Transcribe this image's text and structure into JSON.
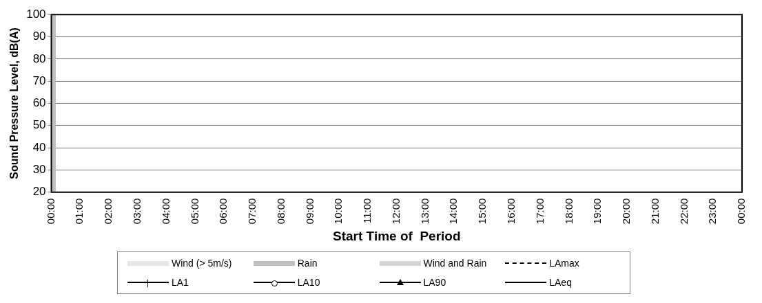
{
  "chart_data": {
    "type": "line",
    "xlabel": "Start Time of  Period",
    "ylabel": "Sound Pressure Level, dB(A)",
    "xlim": [
      0,
      24
    ],
    "xticks": [
      {
        "value": 0,
        "label": "00:00"
      },
      {
        "value": 1,
        "label": "01:00"
      },
      {
        "value": 2,
        "label": "02:00"
      },
      {
        "value": 3,
        "label": "03:00"
      },
      {
        "value": 4,
        "label": "04:00"
      },
      {
        "value": 5,
        "label": "05:00"
      },
      {
        "value": 6,
        "label": "06:00"
      },
      {
        "value": 7,
        "label": "07:00"
      },
      {
        "value": 8,
        "label": "08:00"
      },
      {
        "value": 9,
        "label": "09:00"
      },
      {
        "value": 10,
        "label": "10:00"
      },
      {
        "value": 11,
        "label": "11:00"
      },
      {
        "value": 12,
        "label": "12:00"
      },
      {
        "value": 13,
        "label": "13:00"
      },
      {
        "value": 14,
        "label": "14:00"
      },
      {
        "value": 15,
        "label": "15:00"
      },
      {
        "value": 16,
        "label": "16:00"
      },
      {
        "value": 17,
        "label": "17:00"
      },
      {
        "value": 18,
        "label": "18:00"
      },
      {
        "value": 19,
        "label": "19:00"
      },
      {
        "value": 20,
        "label": "20:00"
      },
      {
        "value": 21,
        "label": "21:00"
      },
      {
        "value": 22,
        "label": "22:00"
      },
      {
        "value": 23,
        "label": "23:00"
      },
      {
        "value": 24,
        "label": "00:00"
      }
    ],
    "ylim": [
      20,
      100
    ],
    "yticks": [
      20,
      30,
      40,
      50,
      60,
      70,
      80,
      90,
      100
    ],
    "grid": "y",
    "legend": "bottom",
    "series": [
      {
        "name": "Wind (> 5m/s)",
        "type": "bar",
        "color": "#e6e6e6"
      },
      {
        "name": "Rain",
        "type": "bar",
        "color": "#c0c0c0",
        "x": [
          0.075
        ],
        "values": [
          100
        ]
      },
      {
        "name": "Wind and Rain",
        "type": "bar",
        "color": "#d4d4d4"
      },
      {
        "name": "LAmax",
        "color": "#000000",
        "line_style": "dashed",
        "marker": "none"
      },
      {
        "name": "LA1",
        "color": "#000000",
        "line_style": "solid",
        "marker": "cross"
      },
      {
        "name": "LA10",
        "color": "#000000",
        "line_style": "solid",
        "marker": "circle"
      },
      {
        "name": "LA90",
        "color": "#000000",
        "line_style": "solid",
        "marker": "triangle"
      },
      {
        "name": "LAeq",
        "color": "#000000",
        "line_style": "solid",
        "marker": "none"
      }
    ]
  }
}
